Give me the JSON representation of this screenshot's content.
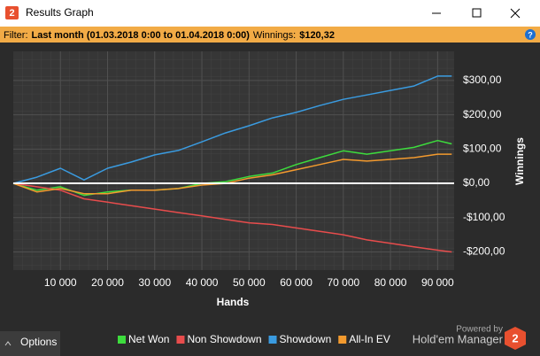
{
  "window": {
    "icon": "2",
    "title": "Results Graph"
  },
  "filter": {
    "label": "Filter:",
    "value": "Last month (01.03.2018 0:00 to 01.04.2018 0:00)",
    "winnings_label": "Winnings:",
    "winnings_value": "$120,32",
    "help": "?"
  },
  "chart_data": {
    "type": "line",
    "x_label": "Hands",
    "y_label": "Winnings",
    "x": [
      0,
      5000,
      10000,
      15000,
      20000,
      25000,
      30000,
      35000,
      40000,
      45000,
      50000,
      55000,
      60000,
      65000,
      70000,
      75000,
      80000,
      85000,
      90000,
      93000
    ],
    "series": [
      {
        "name": "Net Won",
        "color": "#3ddc3d",
        "values": [
          0,
          -20,
          -10,
          -35,
          -25,
          -20,
          -20,
          -15,
          0,
          5,
          20,
          30,
          55,
          75,
          95,
          85,
          95,
          105,
          125,
          115
        ]
      },
      {
        "name": "Non Showdown",
        "color": "#e84c4c",
        "values": [
          0,
          -10,
          -20,
          -45,
          -55,
          -65,
          -75,
          -85,
          -95,
          -105,
          -115,
          -120,
          -130,
          -140,
          -150,
          -165,
          -175,
          -185,
          -195,
          -200
        ]
      },
      {
        "name": "Showdown",
        "color": "#3a9be0",
        "values": [
          0,
          18,
          44,
          10,
          44,
          62,
          83,
          96,
          121,
          147,
          168,
          191,
          207,
          227,
          245,
          258,
          271,
          284,
          313,
          313
        ]
      },
      {
        "name": "All-In EV",
        "color": "#f39a2e",
        "values": [
          0,
          -25,
          -15,
          -30,
          -30,
          -20,
          -20,
          -15,
          -5,
          0,
          15,
          25,
          40,
          55,
          70,
          65,
          70,
          75,
          85,
          85
        ]
      }
    ],
    "xlim": [
      0,
      93500
    ],
    "xticks": [
      {
        "value": 10000,
        "label": "10 000"
      },
      {
        "value": 20000,
        "label": "20 000"
      },
      {
        "value": 30000,
        "label": "30 000"
      },
      {
        "value": 40000,
        "label": "40 000"
      },
      {
        "value": 50000,
        "label": "50 000"
      },
      {
        "value": 60000,
        "label": "60 000"
      },
      {
        "value": 70000,
        "label": "70 000"
      },
      {
        "value": 80000,
        "label": "80 000"
      },
      {
        "value": 90000,
        "label": "90 000"
      }
    ],
    "ylim": [
      -253,
      385
    ],
    "yticks": [
      {
        "value": -200,
        "label": "-$200,00"
      },
      {
        "value": -100,
        "label": "-$100,00"
      },
      {
        "value": 0,
        "label": "$0,00"
      },
      {
        "value": 100,
        "label": "$100,00"
      },
      {
        "value": 200,
        "label": "$200,00"
      },
      {
        "value": 300,
        "label": "$300,00"
      }
    ],
    "grid": true
  },
  "footer": {
    "options": "Options",
    "powered_by": "Powered by",
    "brand": "Hold'em Manager",
    "logo": "2"
  }
}
